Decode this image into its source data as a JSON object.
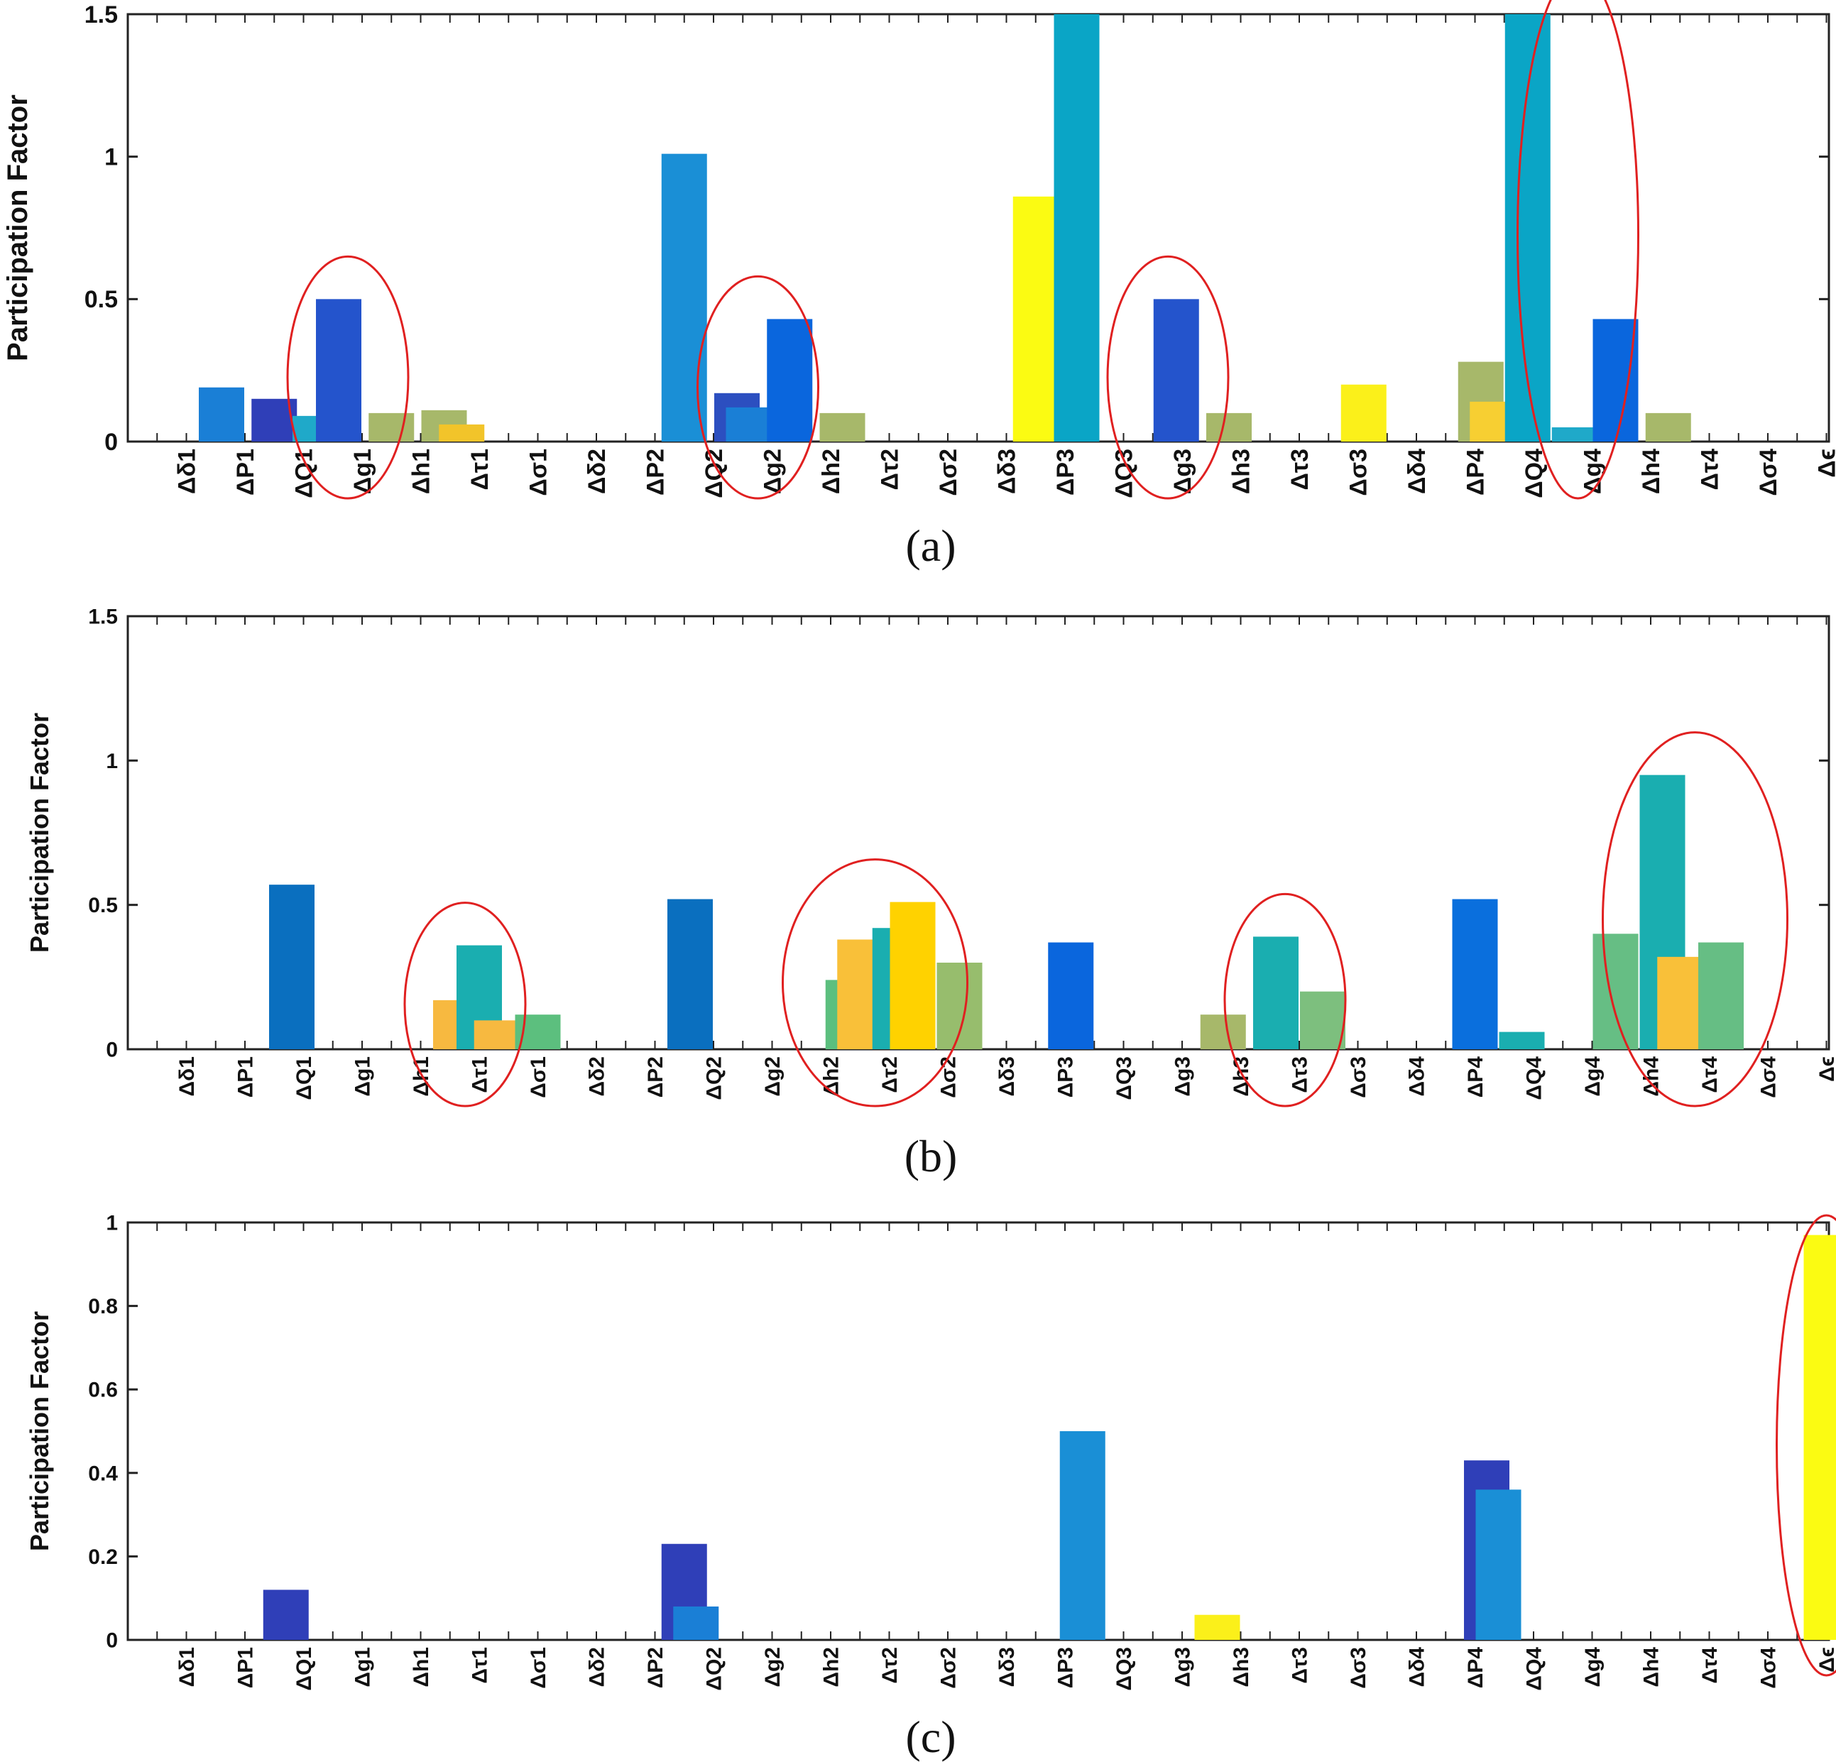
{
  "figure": {
    "caption_labels": [
      "(a)",
      "(b)",
      "(c)"
    ]
  },
  "chart_data": [
    {
      "type": "bar",
      "panel": "(a)",
      "ylabel": "Participation Factor",
      "ylim": [
        0,
        1.5
      ],
      "yticks": [
        0,
        0.5,
        1,
        1.5
      ],
      "ytick_labels": [
        "0",
        "0.5",
        "1",
        "1.5"
      ],
      "categories": [
        "Δδ1",
        "ΔP1",
        "ΔQ1",
        "Δg1",
        "Δh1",
        "Δτ1",
        "Δσ1",
        "Δδ2",
        "ΔP2",
        "ΔQ2",
        "Δg2",
        "Δh2",
        "Δτ2",
        "Δσ2",
        "Δδ3",
        "ΔP3",
        "ΔQ3",
        "Δg3",
        "Δh3",
        "Δτ3",
        "Δσ3",
        "Δδ4",
        "ΔP4",
        "ΔQ4",
        "Δg4",
        "Δh4",
        "Δτ4",
        "Δσ4",
        "Δϵ"
      ],
      "bars": [
        {
          "pos": 0.6,
          "value": 0.19,
          "color": "#1a7fd6"
        },
        {
          "pos": 1.5,
          "value": 0.15,
          "color": "#2f3fb8"
        },
        {
          "pos": 2.2,
          "value": 0.09,
          "color": "#1fa9c9"
        },
        {
          "pos": 2.6,
          "value": 0.5,
          "color": "#2454cc"
        },
        {
          "pos": 3.5,
          "value": 0.1,
          "color": "#a7b86a"
        },
        {
          "pos": 4.4,
          "value": 0.11,
          "color": "#a7b86a"
        },
        {
          "pos": 4.7,
          "value": 0.06,
          "color": "#f2c42a"
        },
        {
          "pos": 8.5,
          "value": 1.01,
          "color": "#1a8fd6"
        },
        {
          "pos": 9.4,
          "value": 0.17,
          "color": "#2c4fc0"
        },
        {
          "pos": 9.6,
          "value": 0.12,
          "color": "#1a7fd6"
        },
        {
          "pos": 10.3,
          "value": 0.43,
          "color": "#0a66dd"
        },
        {
          "pos": 11.2,
          "value": 0.1,
          "color": "#a7b86a"
        },
        {
          "pos": 14.5,
          "value": 0.86,
          "color": "#fbfb12"
        },
        {
          "pos": 15.2,
          "value": 1.5,
          "color": "#0aa5c6"
        },
        {
          "pos": 16.9,
          "value": 0.5,
          "color": "#2454cc"
        },
        {
          "pos": 17.8,
          "value": 0.1,
          "color": "#a7b86a"
        },
        {
          "pos": 20.1,
          "value": 0.2,
          "color": "#fbf01a"
        },
        {
          "pos": 22.1,
          "value": 0.28,
          "color": "#a7b86a"
        },
        {
          "pos": 22.3,
          "value": 0.14,
          "color": "#f7cf32"
        },
        {
          "pos": 22.9,
          "value": 1.5,
          "color": "#0aa5c6"
        },
        {
          "pos": 23.7,
          "value": 0.05,
          "color": "#1fa9c9"
        },
        {
          "pos": 24.4,
          "value": 0.43,
          "color": "#0a66dd"
        },
        {
          "pos": 25.3,
          "value": 0.1,
          "color": "#a7b86a"
        }
      ],
      "highlights": [
        "Δg1",
        "Δg2",
        "Δg3",
        "Δg4"
      ]
    },
    {
      "type": "bar",
      "panel": "(b)",
      "ylabel": "Participation Factor",
      "ylim": [
        0,
        1.5
      ],
      "yticks": [
        0,
        0.5,
        1,
        1.5
      ],
      "ytick_labels": [
        "0",
        "0.5",
        "1",
        "1.5"
      ],
      "categories": [
        "Δδ1",
        "ΔP1",
        "ΔQ1",
        "Δg1",
        "Δh1",
        "Δτ1",
        "Δσ1",
        "Δδ2",
        "ΔP2",
        "ΔQ2",
        "Δg2",
        "Δh2",
        "Δτ2",
        "Δσ2",
        "Δδ3",
        "ΔP3",
        "ΔQ3",
        "Δg3",
        "Δh3",
        "Δτ3",
        "Δσ3",
        "Δδ4",
        "ΔP4",
        "ΔQ4",
        "Δg4",
        "Δh4",
        "Δτ4",
        "Δσ4",
        "Δϵ"
      ],
      "bars": [
        {
          "pos": 1.8,
          "value": 0.57,
          "color": "#0a6fbf"
        },
        {
          "pos": 4.6,
          "value": 0.17,
          "color": "#f7b940"
        },
        {
          "pos": 5.0,
          "value": 0.36,
          "color": "#1aaeb0"
        },
        {
          "pos": 5.3,
          "value": 0.1,
          "color": "#f7b940"
        },
        {
          "pos": 6.0,
          "value": 0.12,
          "color": "#5cbf7e"
        },
        {
          "pos": 8.6,
          "value": 0.52,
          "color": "#0a6fbf"
        },
        {
          "pos": 11.3,
          "value": 0.24,
          "color": "#5cbf7e"
        },
        {
          "pos": 11.5,
          "value": 0.38,
          "color": "#f9c039"
        },
        {
          "pos": 12.1,
          "value": 0.42,
          "color": "#1aaeb0"
        },
        {
          "pos": 12.4,
          "value": 0.51,
          "color": "#ffd200"
        },
        {
          "pos": 13.2,
          "value": 0.3,
          "color": "#97bd6d"
        },
        {
          "pos": 15.1,
          "value": 0.37,
          "color": "#0a66dd"
        },
        {
          "pos": 17.7,
          "value": 0.12,
          "color": "#a7b86a"
        },
        {
          "pos": 18.6,
          "value": 0.39,
          "color": "#1aaeb0"
        },
        {
          "pos": 19.4,
          "value": 0.2,
          "color": "#7dbf7e"
        },
        {
          "pos": 22.0,
          "value": 0.52,
          "color": "#0a6fdd"
        },
        {
          "pos": 22.8,
          "value": 0.06,
          "color": "#1aaeb0"
        },
        {
          "pos": 24.4,
          "value": 0.4,
          "color": "#66be84"
        },
        {
          "pos": 25.2,
          "value": 0.95,
          "color": "#1aaeb0"
        },
        {
          "pos": 25.5,
          "value": 0.32,
          "color": "#f9c039"
        },
        {
          "pos": 26.2,
          "value": 0.37,
          "color": "#66be84"
        }
      ],
      "highlights": [
        "Δτ1",
        "Δτ2",
        "Δτ3",
        "Δτ4"
      ]
    },
    {
      "type": "bar",
      "panel": "(c)",
      "ylabel": "Participation Factor",
      "ylim": [
        0,
        1
      ],
      "yticks": [
        0,
        0.2,
        0.4,
        0.6,
        0.8,
        1
      ],
      "ytick_labels": [
        "0",
        "0.2",
        "0.4",
        "0.6",
        "0.8",
        "1"
      ],
      "categories": [
        "Δδ1",
        "ΔP1",
        "ΔQ1",
        "Δg1",
        "Δh1",
        "Δτ1",
        "Δσ1",
        "Δδ2",
        "ΔP2",
        "ΔQ2",
        "Δg2",
        "Δh2",
        "Δτ2",
        "Δσ2",
        "Δδ3",
        "ΔP3",
        "ΔQ3",
        "Δg3",
        "Δh3",
        "Δτ3",
        "Δσ3",
        "Δδ4",
        "ΔP4",
        "ΔQ4",
        "Δg4",
        "Δh4",
        "Δτ4",
        "Δσ4",
        "Δϵ"
      ],
      "bars": [
        {
          "pos": 1.7,
          "value": 0.12,
          "color": "#2f3fb8"
        },
        {
          "pos": 8.5,
          "value": 0.23,
          "color": "#2f3fb8"
        },
        {
          "pos": 8.7,
          "value": 0.08,
          "color": "#1a7fd6"
        },
        {
          "pos": 15.3,
          "value": 0.5,
          "color": "#1a8fd6"
        },
        {
          "pos": 17.6,
          "value": 0.06,
          "color": "#fbf01a"
        },
        {
          "pos": 22.2,
          "value": 0.43,
          "color": "#2f3fb8"
        },
        {
          "pos": 22.4,
          "value": 0.36,
          "color": "#1a8fd6"
        },
        {
          "pos": 28.0,
          "value": 0.97,
          "color": "#fbfb12"
        }
      ],
      "highlights": [
        "Δϵ"
      ]
    }
  ]
}
